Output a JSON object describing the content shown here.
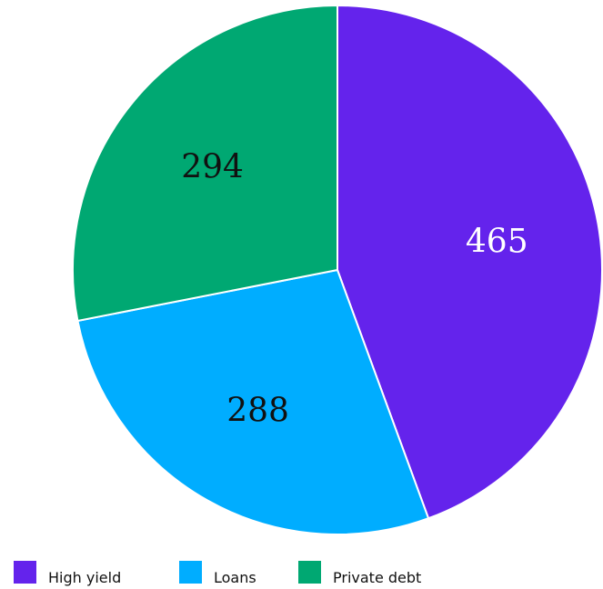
{
  "chart_data": {
    "type": "pie",
    "title": "",
    "categories": [
      "High yield",
      "Loans",
      "Private debt"
    ],
    "values": [
      465,
      288,
      294
    ],
    "colors": [
      "#6423EC",
      "#00ADFF",
      "#00A872"
    ],
    "label_colors": [
      "#FFFFFF",
      "#111111",
      "#111111"
    ],
    "start_angle": "12 o'clock, clockwise",
    "legend_position": "bottom-left"
  }
}
